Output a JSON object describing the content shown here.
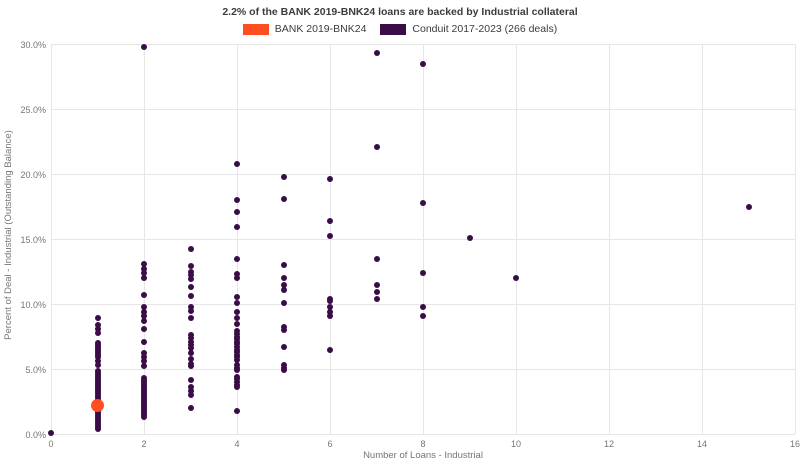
{
  "chart_data": {
    "type": "scatter",
    "title": "2.2% of the BANK 2019-BNK24 loans are backed by Industrial collateral",
    "xlabel": "Number of Loans - Industrial",
    "ylabel": "Percent of Deal - Industrial (Outstanding Balance)",
    "xlim": [
      0,
      16
    ],
    "ylim": [
      0,
      30
    ],
    "grid": true,
    "legend_position": "top",
    "x_ticks": [
      {
        "value": 0,
        "label": "0"
      },
      {
        "value": 2,
        "label": "2"
      },
      {
        "value": 4,
        "label": "4"
      },
      {
        "value": 6,
        "label": "6"
      },
      {
        "value": 8,
        "label": "8"
      },
      {
        "value": 10,
        "label": "10"
      },
      {
        "value": 12,
        "label": "12"
      },
      {
        "value": 14,
        "label": "14"
      },
      {
        "value": 16,
        "label": "16"
      }
    ],
    "y_ticks": [
      {
        "value": 0,
        "label": "0.0%"
      },
      {
        "value": 5,
        "label": "5.0%"
      },
      {
        "value": 10,
        "label": "10.0%"
      },
      {
        "value": 15,
        "label": "15.0%"
      },
      {
        "value": 20,
        "label": "20.0%"
      },
      {
        "value": 25,
        "label": "25.0%"
      },
      {
        "value": 30,
        "label": "30.0%"
      }
    ],
    "colors": {
      "grid": "#e6e6e6",
      "tick_text": "#757575",
      "title_text": "#3c3c3c"
    },
    "series": [
      {
        "name": "BANK 2019-BNK24",
        "color": "#ff4e21",
        "marker_diameter": 13,
        "points": [
          [
            1,
            2.2
          ]
        ]
      },
      {
        "name": "Conduit 2017-2023 (266 deals)",
        "color": "#3a0d47",
        "marker_diameter": 6,
        "points": [
          [
            0,
            0.1
          ],
          [
            1,
            8.9
          ],
          [
            1,
            8.4
          ],
          [
            1,
            8.05
          ],
          [
            1,
            7.75
          ],
          [
            1,
            7.0
          ],
          [
            1,
            6.85
          ],
          [
            1,
            6.7
          ],
          [
            1,
            6.55
          ],
          [
            1,
            6.4
          ],
          [
            1,
            6.25
          ],
          [
            1,
            6.1
          ],
          [
            1,
            5.95
          ],
          [
            1,
            5.6
          ],
          [
            1,
            5.3
          ],
          [
            1,
            4.85
          ],
          [
            1,
            4.7
          ],
          [
            1,
            4.55
          ],
          [
            1,
            4.4
          ],
          [
            1,
            4.25
          ],
          [
            1,
            4.1
          ],
          [
            1,
            3.95
          ],
          [
            1,
            3.8
          ],
          [
            1,
            3.65
          ],
          [
            1,
            3.5
          ],
          [
            1,
            3.35
          ],
          [
            1,
            3.2
          ],
          [
            1,
            3.05
          ],
          [
            1,
            2.9
          ],
          [
            1,
            2.75
          ],
          [
            1,
            2.6
          ],
          [
            1,
            2.45
          ],
          [
            1,
            2.3
          ],
          [
            1,
            1.85
          ],
          [
            1,
            1.7
          ],
          [
            1,
            1.55
          ],
          [
            1,
            1.4
          ],
          [
            1,
            1.25
          ],
          [
            1,
            1.1
          ],
          [
            1,
            0.95
          ],
          [
            1,
            0.8
          ],
          [
            1,
            0.65
          ],
          [
            1,
            0.5
          ],
          [
            1,
            0.35
          ],
          [
            2,
            29.8
          ],
          [
            2,
            13.1
          ],
          [
            2,
            12.7
          ],
          [
            2,
            12.4
          ],
          [
            2,
            12.0
          ],
          [
            2,
            10.7
          ],
          [
            2,
            9.8
          ],
          [
            2,
            9.4
          ],
          [
            2,
            9.1
          ],
          [
            2,
            8.7
          ],
          [
            2,
            8.1
          ],
          [
            2,
            7.1
          ],
          [
            2,
            6.2
          ],
          [
            2,
            5.9
          ],
          [
            2,
            5.6
          ],
          [
            2,
            5.2
          ],
          [
            2,
            4.3
          ],
          [
            2,
            4.15
          ],
          [
            2,
            4.0
          ],
          [
            2,
            3.85
          ],
          [
            2,
            3.7
          ],
          [
            2,
            3.55
          ],
          [
            2,
            3.4
          ],
          [
            2,
            3.25
          ],
          [
            2,
            3.1
          ],
          [
            2,
            2.95
          ],
          [
            2,
            2.8
          ],
          [
            2,
            2.65
          ],
          [
            2,
            2.5
          ],
          [
            2,
            2.35
          ],
          [
            2,
            2.2
          ],
          [
            2,
            2.05
          ],
          [
            2,
            1.9
          ],
          [
            2,
            1.75
          ],
          [
            2,
            1.6
          ],
          [
            2,
            1.45
          ],
          [
            2,
            1.3
          ],
          [
            3,
            14.2
          ],
          [
            3,
            12.9
          ],
          [
            3,
            12.5
          ],
          [
            3,
            12.2
          ],
          [
            3,
            11.9
          ],
          [
            3,
            11.3
          ],
          [
            3,
            10.6
          ],
          [
            3,
            9.8
          ],
          [
            3,
            9.5
          ],
          [
            3,
            8.9
          ],
          [
            3,
            7.6
          ],
          [
            3,
            7.35
          ],
          [
            3,
            7.1
          ],
          [
            3,
            6.85
          ],
          [
            3,
            6.6
          ],
          [
            3,
            6.2
          ],
          [
            3,
            5.8
          ],
          [
            3,
            5.4
          ],
          [
            3,
            5.2
          ],
          [
            3,
            4.15
          ],
          [
            3,
            3.6
          ],
          [
            3,
            3.3
          ],
          [
            3,
            3.0
          ],
          [
            3,
            2.0
          ],
          [
            4,
            20.8
          ],
          [
            4,
            18.0
          ],
          [
            4,
            17.1
          ],
          [
            4,
            15.9
          ],
          [
            4,
            13.5
          ],
          [
            4,
            12.3
          ],
          [
            4,
            12.0
          ],
          [
            4,
            10.55
          ],
          [
            4,
            10.05
          ],
          [
            4,
            9.4
          ],
          [
            4,
            8.9
          ],
          [
            4,
            8.5
          ],
          [
            4,
            7.9
          ],
          [
            4,
            7.7
          ],
          [
            4,
            7.5
          ],
          [
            4,
            7.3
          ],
          [
            4,
            7.1
          ],
          [
            4,
            6.9
          ],
          [
            4,
            6.7
          ],
          [
            4,
            6.5
          ],
          [
            4,
            6.3
          ],
          [
            4,
            6.1
          ],
          [
            4,
            5.9
          ],
          [
            4,
            5.7
          ],
          [
            4,
            5.3
          ],
          [
            4,
            5.1
          ],
          [
            4,
            4.9
          ],
          [
            4,
            4.4
          ],
          [
            4,
            4.2
          ],
          [
            4,
            4.0
          ],
          [
            4,
            3.8
          ],
          [
            4,
            3.6
          ],
          [
            4,
            1.8
          ],
          [
            5,
            19.8
          ],
          [
            5,
            18.1
          ],
          [
            5,
            13.0
          ],
          [
            5,
            12.0
          ],
          [
            5,
            11.5
          ],
          [
            5,
            11.1
          ],
          [
            5,
            10.05
          ],
          [
            5,
            8.2
          ],
          [
            5,
            8.0
          ],
          [
            5,
            6.7
          ],
          [
            5,
            5.3
          ],
          [
            5,
            5.1
          ],
          [
            5,
            4.9
          ],
          [
            6,
            19.6
          ],
          [
            6,
            16.4
          ],
          [
            6,
            15.2
          ],
          [
            6,
            10.4
          ],
          [
            6,
            10.2
          ],
          [
            6,
            9.8
          ],
          [
            6,
            9.4
          ],
          [
            6,
            9.1
          ],
          [
            6,
            6.5
          ],
          [
            7,
            29.3
          ],
          [
            7,
            22.1
          ],
          [
            7,
            13.5
          ],
          [
            7,
            11.5
          ],
          [
            7,
            10.9
          ],
          [
            7,
            10.4
          ],
          [
            8,
            28.5
          ],
          [
            8,
            17.8
          ],
          [
            8,
            12.4
          ],
          [
            8,
            9.8
          ],
          [
            8,
            9.1
          ],
          [
            9,
            15.1
          ],
          [
            10,
            12.0
          ],
          [
            15,
            17.5
          ]
        ]
      }
    ]
  }
}
